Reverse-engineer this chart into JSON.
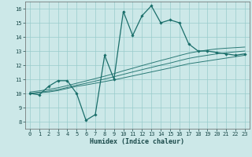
{
  "xlabel": "Humidex (Indice chaleur)",
  "background_color": "#cce8e8",
  "grid_color": "#99cccc",
  "line_color": "#1a6e6a",
  "xlim": [
    -0.5,
    23.5
  ],
  "ylim": [
    7.5,
    16.5
  ],
  "yticks": [
    8,
    9,
    10,
    11,
    12,
    13,
    14,
    15,
    16
  ],
  "xticks": [
    0,
    1,
    2,
    3,
    4,
    5,
    6,
    7,
    8,
    9,
    10,
    11,
    12,
    13,
    14,
    15,
    16,
    17,
    18,
    19,
    20,
    21,
    22,
    23
  ],
  "main_line": {
    "x": [
      0,
      1,
      2,
      3,
      4,
      5,
      6,
      7,
      8,
      9,
      10,
      11,
      12,
      13,
      14,
      15,
      16,
      17,
      18,
      19,
      20,
      21,
      22,
      23
    ],
    "y": [
      10.0,
      9.9,
      10.5,
      10.9,
      10.9,
      10.0,
      8.1,
      8.5,
      12.7,
      11.0,
      15.8,
      14.1,
      15.5,
      16.2,
      15.0,
      15.2,
      15.0,
      13.5,
      13.0,
      13.0,
      12.9,
      12.8,
      12.7,
      12.8
    ]
  },
  "band_lines": [
    {
      "x": [
        0,
        1,
        2,
        3,
        4,
        5,
        6,
        7,
        8,
        9,
        10,
        11,
        12,
        13,
        14,
        15,
        16,
        17,
        18,
        19,
        20,
        21,
        22,
        23
      ],
      "y": [
        10.0,
        10.05,
        10.1,
        10.2,
        10.35,
        10.5,
        10.6,
        10.72,
        10.84,
        10.96,
        11.1,
        11.24,
        11.38,
        11.52,
        11.66,
        11.8,
        11.95,
        12.1,
        12.2,
        12.3,
        12.4,
        12.5,
        12.6,
        12.7
      ]
    },
    {
      "x": [
        0,
        1,
        2,
        3,
        4,
        5,
        6,
        7,
        8,
        9,
        10,
        11,
        12,
        13,
        14,
        15,
        16,
        17,
        18,
        19,
        20,
        21,
        22,
        23
      ],
      "y": [
        10.0,
        10.08,
        10.17,
        10.27,
        10.42,
        10.58,
        10.72,
        10.87,
        11.02,
        11.18,
        11.35,
        11.52,
        11.68,
        11.84,
        12.0,
        12.15,
        12.32,
        12.48,
        12.6,
        12.7,
        12.8,
        12.88,
        12.94,
        13.0
      ]
    },
    {
      "x": [
        0,
        1,
        2,
        3,
        4,
        5,
        6,
        7,
        8,
        9,
        10,
        11,
        12,
        13,
        14,
        15,
        16,
        17,
        18,
        19,
        20,
        21,
        22,
        23
      ],
      "y": [
        10.1,
        10.18,
        10.28,
        10.4,
        10.55,
        10.72,
        10.88,
        11.05,
        11.22,
        11.4,
        11.6,
        11.78,
        11.97,
        12.15,
        12.33,
        12.5,
        12.68,
        12.85,
        12.97,
        13.07,
        13.15,
        13.2,
        13.24,
        13.28
      ]
    }
  ]
}
